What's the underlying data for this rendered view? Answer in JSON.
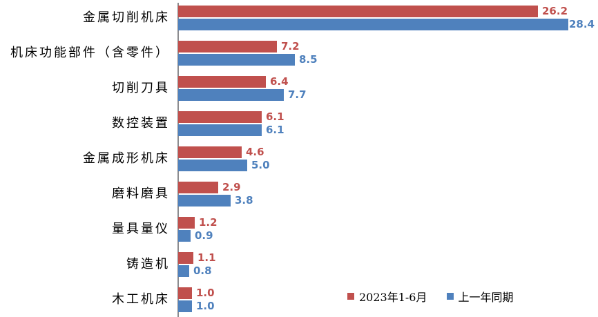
{
  "chart_data": {
    "type": "bar",
    "orientation": "horizontal",
    "title": "",
    "xlabel": "",
    "ylabel": "",
    "xlim": [
      0,
      30.5
    ],
    "grid": false,
    "value_axis_visible": false,
    "category_axis_line_color": "#8c8c8f",
    "legend_position": "inside-bottom-right",
    "categories": [
      "金属切削机床",
      "机床功能部件（含零件）",
      "切削刀具",
      "数控装置",
      "金属成形机床",
      "磨料磨具",
      "量具量仪",
      "铸造机",
      "木工机床"
    ],
    "series": [
      {
        "name": "2023年1-6月",
        "color": "#c0504d",
        "values": [
          26.2,
          7.2,
          6.4,
          6.1,
          4.6,
          2.9,
          1.2,
          1.1,
          1.0
        ],
        "value_labels": [
          "26.2",
          "7.2",
          "6.4",
          "6.1",
          "4.6",
          "2.9",
          "1.2",
          "1.1",
          "1.0"
        ]
      },
      {
        "name": "上一年同期",
        "color": "#4f81bd",
        "values": [
          28.4,
          8.5,
          7.7,
          6.1,
          5.0,
          3.8,
          0.9,
          0.8,
          1.0
        ],
        "value_labels": [
          "28.4",
          "8.5",
          "7.7",
          "6.1",
          "5.0",
          "3.8",
          "0.9",
          "0.8",
          "1.0"
        ]
      }
    ]
  }
}
